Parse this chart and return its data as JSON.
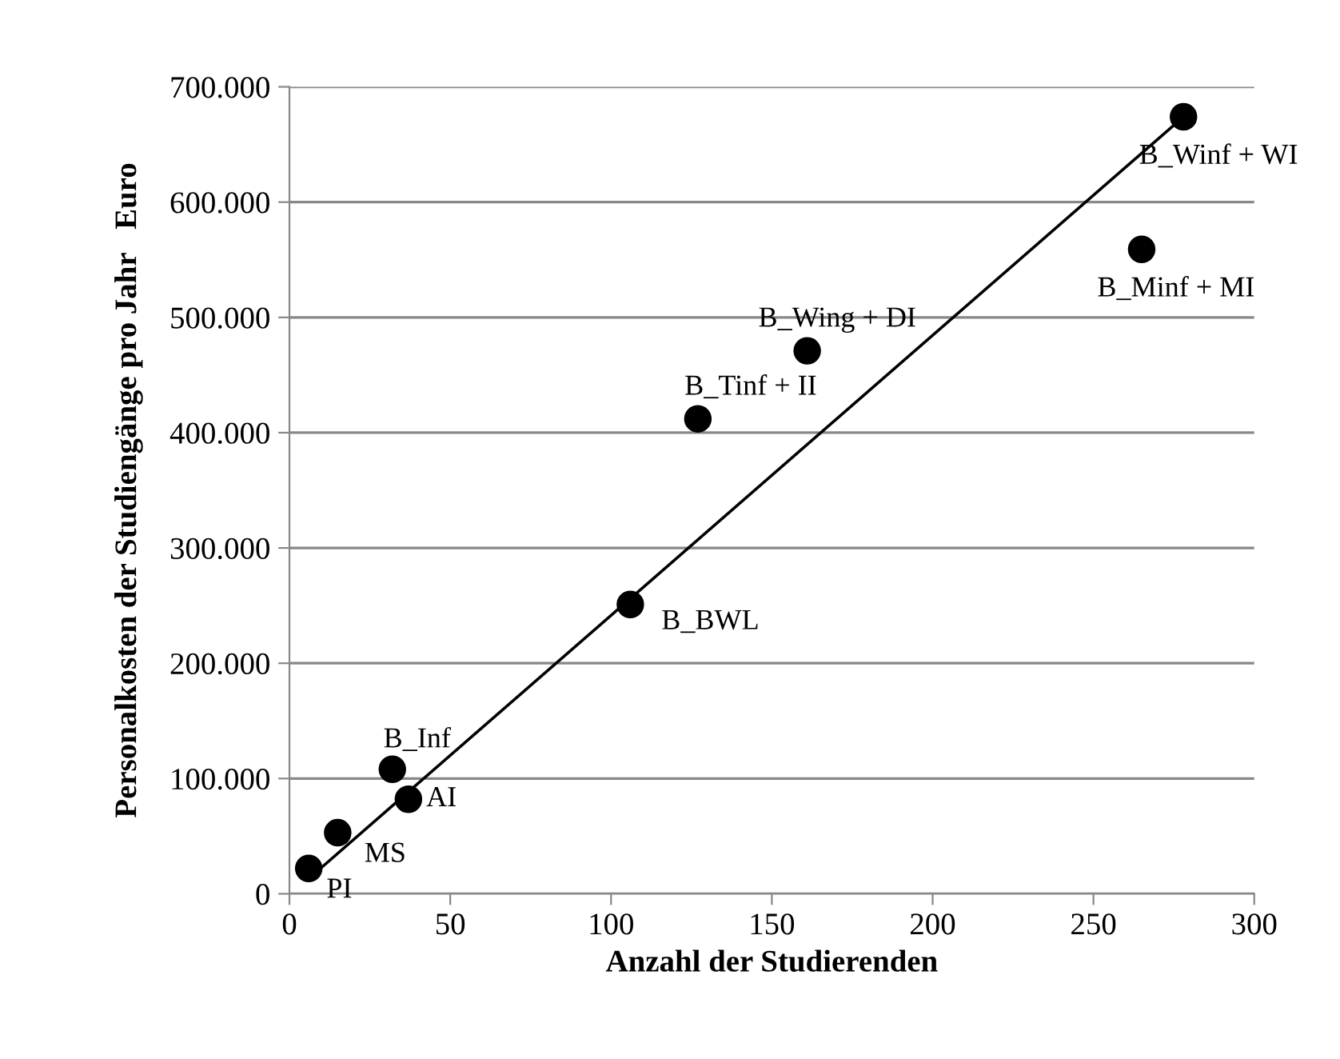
{
  "chart_data": {
    "type": "scatter",
    "xlabel": "Anzahl der Studierenden",
    "ylabel": "Personalkosten der Studiengänge pro Jahr   Euro",
    "series": [
      {
        "color": "#000000",
        "marker": "circle",
        "x": [
          6,
          15,
          32,
          37,
          106,
          127,
          161,
          265,
          278
        ],
        "values": [
          22000,
          53000,
          108000,
          82000,
          251000,
          412000,
          471000,
          559000,
          674000
        ]
      },
      {
        "type": "line",
        "color": "#000000",
        "line_style": "solid",
        "x": [
          8,
          278
        ],
        "values": [
          18000,
          674000
        ]
      }
    ],
    "annotations": [
      {
        "text": "PI",
        "x": 6,
        "y": 22000
      },
      {
        "text": "MS",
        "x": 15,
        "y": 53000
      },
      {
        "text": "B_Inf",
        "x": 32,
        "y": 108000
      },
      {
        "text": "AI",
        "x": 37,
        "y": 82000
      },
      {
        "text": "B_BWL",
        "x": 106,
        "y": 251000
      },
      {
        "text": "B_Tinf + II",
        "x": 127,
        "y": 412000
      },
      {
        "text": "B_Wing + DI",
        "x": 161,
        "y": 471000
      },
      {
        "text": "B_Minf + MI",
        "x": 265,
        "y": 559000
      },
      {
        "text": "B_Winf + WI",
        "x": 278,
        "y": 674000
      }
    ],
    "xlim": [
      0,
      300
    ],
    "xticks": [
      0,
      50,
      100,
      150,
      200,
      250,
      300
    ],
    "ylim": [
      0,
      700000
    ],
    "yticks": [
      0,
      {
        "value": 100000,
        "label": "100.000"
      },
      {
        "value": 200000,
        "label": "200.000"
      },
      {
        "value": 300000,
        "label": "300.000"
      },
      {
        "value": 400000,
        "label": "400.000"
      },
      {
        "value": 500000,
        "label": "500.000"
      },
      {
        "value": 600000,
        "label": "600.000"
      },
      {
        "value": 700000,
        "label": "700.000"
      }
    ],
    "grid": "y",
    "legend": false
  }
}
